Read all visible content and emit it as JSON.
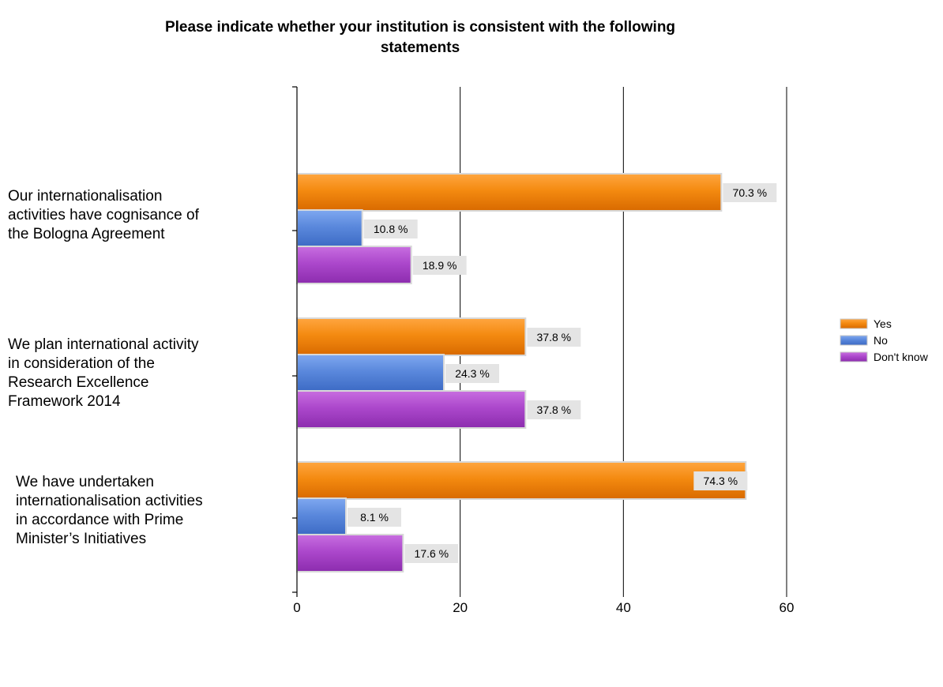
{
  "chart_data": {
    "type": "bar",
    "orientation": "horizontal",
    "title": "Please indicate whether your institution is consistent with the following statements",
    "title_lines": [
      "Please indicate whether your institution is consistent with the following",
      "statements"
    ],
    "categories": [
      "Our internationalisation activities have cognisance of the Bologna Agreement",
      "We plan international activity in consideration of the Research Excellence Framework 2014",
      "We have undertaken internationalisation activities in accordance with Prime Minister’s Initiatives"
    ],
    "category_label_lines": [
      [
        "Our internationalisation",
        "activities have cognisance of",
        "the Bologna Agreement"
      ],
      [
        "We plan international activity",
        "in consideration of the",
        "Research Excellence",
        "Framework 2014"
      ],
      [
        "We have undertaken",
        "internationalisation activities",
        "in accordance with Prime",
        "Minister’s Initiatives"
      ]
    ],
    "series": [
      {
        "name": "Yes",
        "color": "#f08000",
        "values": [
          52,
          28,
          55
        ],
        "labels": [
          "70.3 %",
          "37.8 %",
          "74.3 %"
        ]
      },
      {
        "name": "No",
        "color": "#4f7fd8",
        "values": [
          8,
          18,
          6
        ],
        "labels": [
          "10.8 %",
          "24.3 %",
          "8.1 %"
        ]
      },
      {
        "name": "Don't know",
        "color": "#a43cc4",
        "values": [
          14,
          28,
          13
        ],
        "labels": [
          "18.9 %",
          "37.8 %",
          "17.6 %"
        ]
      }
    ],
    "xlim": [
      0,
      60
    ],
    "xticks": [
      0,
      20,
      40,
      60
    ],
    "xtick_labels": [
      "0",
      "20",
      "40",
      "60"
    ],
    "grid": "vertical",
    "legend_position": "right"
  }
}
